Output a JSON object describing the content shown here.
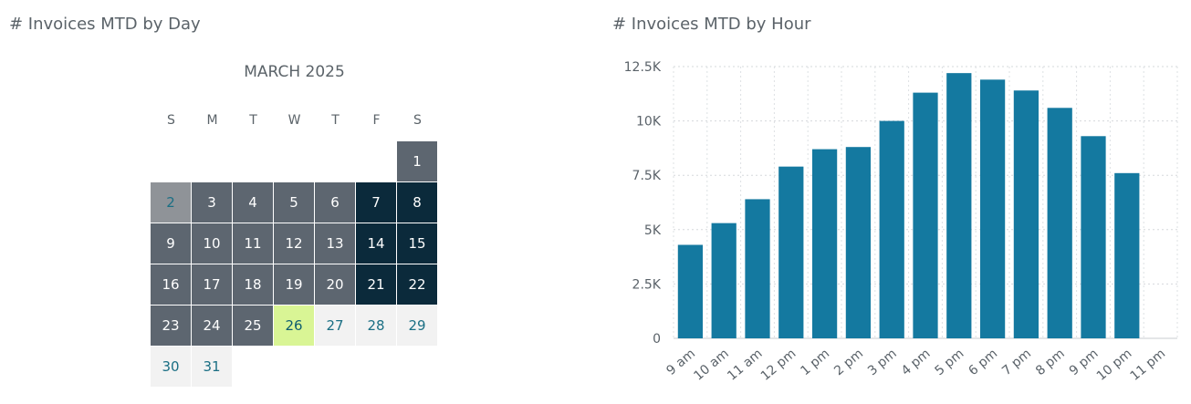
{
  "titles": {
    "by_day": "# Invoices MTD by Day",
    "by_hour": "# Invoices MTD by Hour"
  },
  "calendar": {
    "month_label": "MARCH 2025",
    "weekday_labels": [
      "S",
      "M",
      "T",
      "W",
      "T",
      "F",
      "S"
    ],
    "first_weekday_index": 6,
    "days": [
      {
        "day": "1",
        "level": "mid"
      },
      {
        "day": "2",
        "level": "light"
      },
      {
        "day": "3",
        "level": "mid"
      },
      {
        "day": "4",
        "level": "mid"
      },
      {
        "day": "5",
        "level": "mid"
      },
      {
        "day": "6",
        "level": "mid"
      },
      {
        "day": "7",
        "level": "dark"
      },
      {
        "day": "8",
        "level": "dark"
      },
      {
        "day": "9",
        "level": "mid"
      },
      {
        "day": "10",
        "level": "mid"
      },
      {
        "day": "11",
        "level": "mid"
      },
      {
        "day": "12",
        "level": "mid"
      },
      {
        "day": "13",
        "level": "mid"
      },
      {
        "day": "14",
        "level": "dark"
      },
      {
        "day": "15",
        "level": "dark"
      },
      {
        "day": "16",
        "level": "mid"
      },
      {
        "day": "17",
        "level": "mid"
      },
      {
        "day": "18",
        "level": "mid"
      },
      {
        "day": "19",
        "level": "mid"
      },
      {
        "day": "20",
        "level": "mid"
      },
      {
        "day": "21",
        "level": "dark"
      },
      {
        "day": "22",
        "level": "dark"
      },
      {
        "day": "23",
        "level": "mid"
      },
      {
        "day": "24",
        "level": "mid"
      },
      {
        "day": "25",
        "level": "mid"
      },
      {
        "day": "26",
        "level": "today"
      },
      {
        "day": "27",
        "level": "future"
      },
      {
        "day": "28",
        "level": "future"
      },
      {
        "day": "29",
        "level": "future"
      },
      {
        "day": "30",
        "level": "future"
      },
      {
        "day": "31",
        "level": "future"
      }
    ],
    "colors": {
      "dark": "#0b2a3b",
      "mid": "#5d6670",
      "light": "#8f9398",
      "today": "#d9f595",
      "future": "#f2f2f2"
    }
  },
  "chart_data": {
    "type": "bar",
    "categories": [
      "9 am",
      "10 am",
      "11 am",
      "12 pm",
      "1 pm",
      "2 pm",
      "3 pm",
      "4 pm",
      "5 pm",
      "6 pm",
      "7 pm",
      "8 pm",
      "9 pm",
      "10 pm",
      "11 pm"
    ],
    "values": [
      4300,
      5300,
      6400,
      7900,
      8700,
      8800,
      10000,
      11300,
      12200,
      11900,
      11400,
      10600,
      9300,
      7600,
      0
    ],
    "ylim": [
      0,
      12500
    ],
    "yticks": [
      0,
      2500,
      5000,
      7500,
      10000,
      12500
    ],
    "ytick_labels": [
      "0",
      "2.5K",
      "5K",
      "7.5K",
      "10K",
      "12.5K"
    ],
    "grid": true,
    "bar_color": "#1479a0",
    "title": "# Invoices MTD by Hour",
    "xlabel": "",
    "ylabel": ""
  }
}
